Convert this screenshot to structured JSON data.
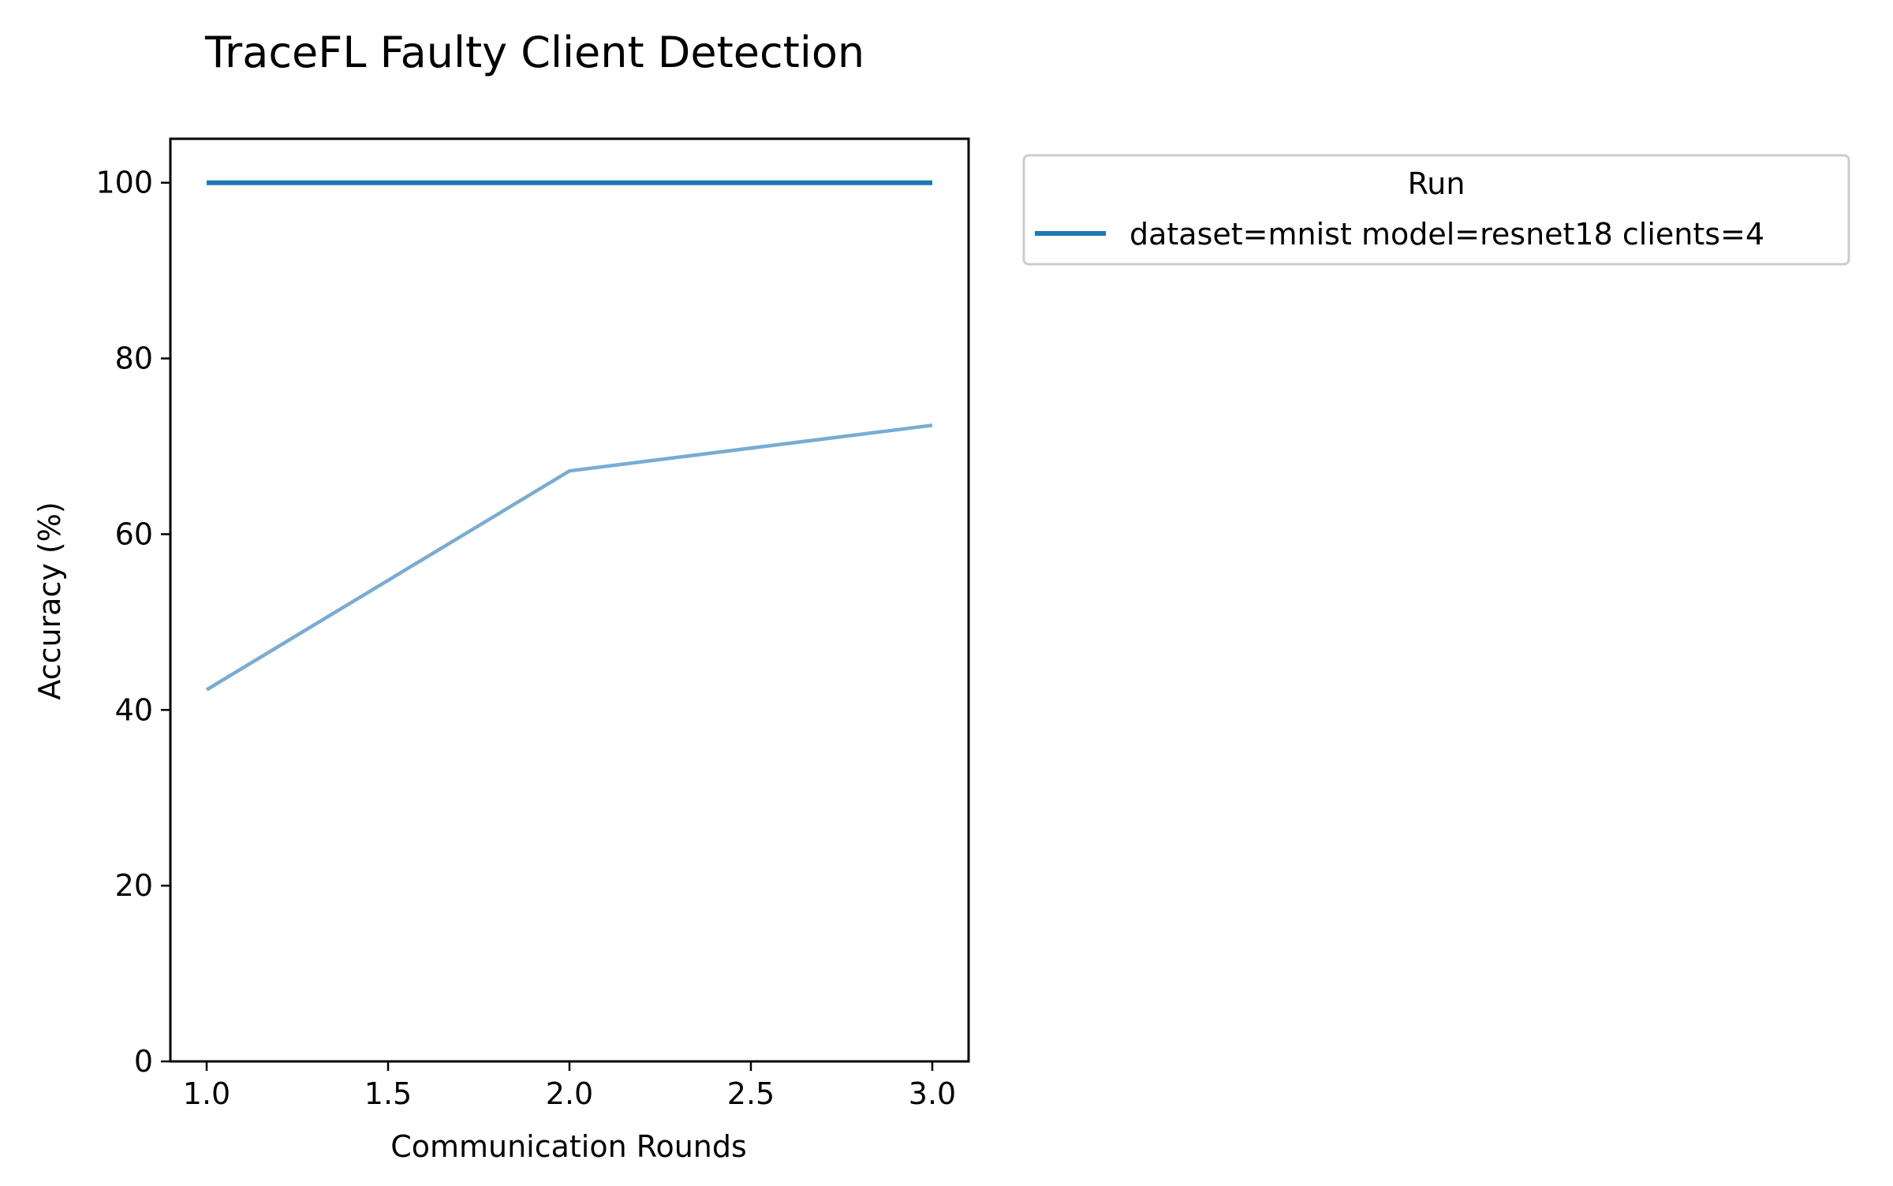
{
  "chart_data": {
    "type": "line",
    "title": "TraceFL Faulty Client Detection",
    "xlabel": "Communication Rounds",
    "ylabel": "Accuracy (%)",
    "xlim": [
      0.9,
      3.1
    ],
    "ylim": [
      0,
      105
    ],
    "xticks": [
      "1.0",
      "1.5",
      "2.0",
      "2.5",
      "3.0"
    ],
    "yticks": [
      "0",
      "20",
      "40",
      "60",
      "80",
      "100"
    ],
    "grid": false,
    "legend": {
      "title": "Run",
      "placement": "outside-top-right",
      "entries": [
        "dataset=mnist model=resnet18 clients=4"
      ]
    },
    "series": [
      {
        "name": "dataset=mnist model=resnet18 clients=4",
        "x": [
          1,
          2,
          3
        ],
        "y": [
          100,
          100,
          100
        ],
        "color": "#1f77b4"
      },
      {
        "x": [
          1,
          2,
          3
        ],
        "y": [
          42.3,
          67.2,
          72.4
        ],
        "color": "#79acd2"
      }
    ]
  }
}
